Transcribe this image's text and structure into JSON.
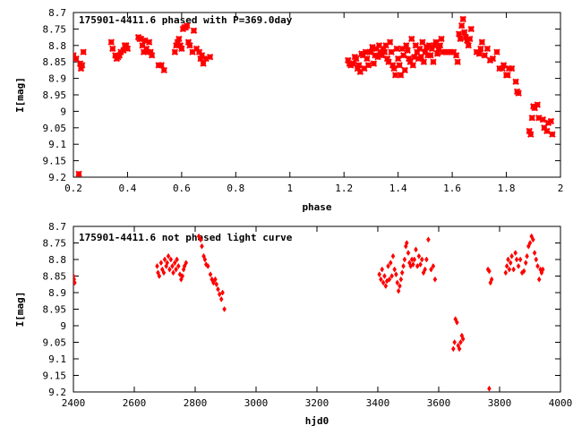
{
  "theme": {
    "marker_color": "#ff0000",
    "axis_color": "#000000",
    "background": "#ffffff"
  },
  "chart_data": [
    {
      "type": "scatter",
      "title": "175901-4411.6 phased with P=369.0day",
      "xlabel": "phase",
      "ylabel": "I[mag]",
      "xlim": [
        0.2,
        2.0
      ],
      "ylim": [
        8.7,
        9.2
      ],
      "y_inverted": true,
      "grid": false,
      "legend": "none",
      "marker": "cross",
      "x_ticks": [
        0.2,
        0.4,
        0.6,
        0.8,
        1,
        1.2,
        1.4,
        1.6,
        1.8,
        2
      ],
      "x_tick_labels": [
        "0.2",
        "0.4",
        "0.6",
        "0.8",
        "1",
        "1.2",
        "1.4",
        "1.6",
        "1.8",
        "2"
      ],
      "y_ticks": [
        8.7,
        8.75,
        8.8,
        8.85,
        8.9,
        8.95,
        9,
        9.05,
        9.1,
        9.15,
        9.2
      ],
      "y_tick_labels": [
        "8.7",
        "8.75",
        "8.8",
        "8.85",
        "8.9",
        "8.95",
        "9",
        "9.05",
        "9.1",
        "9.15",
        "9.2"
      ],
      "points": [
        [
          0.2,
          8.83
        ],
        [
          0.21,
          8.84
        ],
        [
          0.225,
          8.855
        ],
        [
          0.228,
          8.87
        ],
        [
          0.232,
          8.86
        ],
        [
          0.237,
          8.82
        ],
        [
          0.22,
          9.19
        ],
        [
          0.34,
          8.79
        ],
        [
          0.345,
          8.81
        ],
        [
          0.355,
          8.83
        ],
        [
          0.36,
          8.84
        ],
        [
          0.365,
          8.835
        ],
        [
          0.37,
          8.83
        ],
        [
          0.375,
          8.82
        ],
        [
          0.385,
          8.815
        ],
        [
          0.39,
          8.8
        ],
        [
          0.395,
          8.8
        ],
        [
          0.4,
          8.81
        ],
        [
          0.44,
          8.775
        ],
        [
          0.445,
          8.78
        ],
        [
          0.45,
          8.78
        ],
        [
          0.455,
          8.8
        ],
        [
          0.46,
          8.82
        ],
        [
          0.465,
          8.785
        ],
        [
          0.47,
          8.81
        ],
        [
          0.475,
          8.82
        ],
        [
          0.48,
          8.79
        ],
        [
          0.485,
          8.82
        ],
        [
          0.49,
          8.83
        ],
        [
          0.515,
          8.86
        ],
        [
          0.525,
          8.86
        ],
        [
          0.535,
          8.875
        ],
        [
          0.575,
          8.82
        ],
        [
          0.58,
          8.8
        ],
        [
          0.585,
          8.79
        ],
        [
          0.59,
          8.78
        ],
        [
          0.595,
          8.8
        ],
        [
          0.6,
          8.81
        ],
        [
          0.605,
          8.75
        ],
        [
          0.61,
          8.745
        ],
        [
          0.615,
          8.745
        ],
        [
          0.62,
          8.74
        ],
        [
          0.625,
          8.79
        ],
        [
          0.63,
          8.8
        ],
        [
          0.64,
          8.82
        ],
        [
          0.645,
          8.755
        ],
        [
          0.655,
          8.81
        ],
        [
          0.665,
          8.82
        ],
        [
          0.67,
          8.84
        ],
        [
          0.675,
          8.83
        ],
        [
          0.68,
          8.855
        ],
        [
          0.69,
          8.84
        ],
        [
          0.705,
          8.835
        ],
        [
          1.215,
          8.845
        ],
        [
          1.22,
          8.855
        ],
        [
          1.225,
          8.86
        ],
        [
          1.235,
          8.855
        ],
        [
          1.24,
          8.835
        ],
        [
          1.245,
          8.84
        ],
        [
          1.25,
          8.87
        ],
        [
          1.255,
          8.86
        ],
        [
          1.26,
          8.88
        ],
        [
          1.265,
          8.825
        ],
        [
          1.27,
          8.83
        ],
        [
          1.275,
          8.87
        ],
        [
          1.28,
          8.82
        ],
        [
          1.285,
          8.84
        ],
        [
          1.29,
          8.86
        ],
        [
          1.295,
          8.82
        ],
        [
          1.3,
          8.82
        ],
        [
          1.305,
          8.805
        ],
        [
          1.31,
          8.855
        ],
        [
          1.315,
          8.83
        ],
        [
          1.32,
          8.81
        ],
        [
          1.325,
          8.835
        ],
        [
          1.33,
          8.8
        ],
        [
          1.335,
          8.82
        ],
        [
          1.34,
          8.83
        ],
        [
          1.345,
          8.81
        ],
        [
          1.35,
          8.82
        ],
        [
          1.355,
          8.8
        ],
        [
          1.36,
          8.84
        ],
        [
          1.365,
          8.85
        ],
        [
          1.37,
          8.79
        ],
        [
          1.375,
          8.82
        ],
        [
          1.38,
          8.86
        ],
        [
          1.385,
          8.87
        ],
        [
          1.39,
          8.89
        ],
        [
          1.395,
          8.81
        ],
        [
          1.4,
          8.84
        ],
        [
          1.405,
          8.86
        ],
        [
          1.41,
          8.89
        ],
        [
          1.415,
          8.81
        ],
        [
          1.42,
          8.83
        ],
        [
          1.425,
          8.875
        ],
        [
          1.43,
          8.8
        ],
        [
          1.435,
          8.815
        ],
        [
          1.44,
          8.84
        ],
        [
          1.445,
          8.85
        ],
        [
          1.45,
          8.78
        ],
        [
          1.455,
          8.86
        ],
        [
          1.46,
          8.835
        ],
        [
          1.465,
          8.8
        ],
        [
          1.47,
          8.82
        ],
        [
          1.475,
          8.84
        ],
        [
          1.48,
          8.81
        ],
        [
          1.485,
          8.835
        ],
        [
          1.49,
          8.79
        ],
        [
          1.495,
          8.85
        ],
        [
          1.5,
          8.82
        ],
        [
          1.505,
          8.805
        ],
        [
          1.51,
          8.83
        ],
        [
          1.515,
          8.8
        ],
        [
          1.52,
          8.83
        ],
        [
          1.525,
          8.81
        ],
        [
          1.53,
          8.85
        ],
        [
          1.535,
          8.8
        ],
        [
          1.54,
          8.79
        ],
        [
          1.545,
          8.825
        ],
        [
          1.55,
          8.81
        ],
        [
          1.555,
          8.8
        ],
        [
          1.56,
          8.78
        ],
        [
          1.565,
          8.82
        ],
        [
          1.575,
          8.82
        ],
        [
          1.585,
          8.82
        ],
        [
          1.595,
          8.82
        ],
        [
          1.605,
          8.82
        ],
        [
          1.615,
          8.83
        ],
        [
          1.62,
          8.85
        ],
        [
          1.625,
          8.765
        ],
        [
          1.63,
          8.78
        ],
        [
          1.635,
          8.74
        ],
        [
          1.64,
          8.72
        ],
        [
          1.645,
          8.76
        ],
        [
          1.65,
          8.775
        ],
        [
          1.655,
          8.785
        ],
        [
          1.66,
          8.8
        ],
        [
          1.665,
          8.78
        ],
        [
          1.67,
          8.75
        ],
        [
          1.69,
          8.82
        ],
        [
          1.7,
          8.825
        ],
        [
          1.705,
          8.81
        ],
        [
          1.71,
          8.79
        ],
        [
          1.72,
          8.83
        ],
        [
          1.73,
          8.81
        ],
        [
          1.74,
          8.845
        ],
        [
          1.75,
          8.84
        ],
        [
          1.765,
          8.82
        ],
        [
          1.775,
          8.87
        ],
        [
          1.785,
          8.87
        ],
        [
          1.79,
          8.86
        ],
        [
          1.8,
          8.89
        ],
        [
          1.805,
          8.89
        ],
        [
          1.81,
          8.87
        ],
        [
          1.82,
          8.87
        ],
        [
          1.835,
          8.91
        ],
        [
          1.84,
          8.94
        ],
        [
          1.845,
          8.945
        ],
        [
          1.885,
          9.06
        ],
        [
          1.89,
          9.07
        ],
        [
          1.895,
          9.02
        ],
        [
          1.9,
          8.985
        ],
        [
          1.905,
          8.99
        ],
        [
          1.915,
          8.98
        ],
        [
          1.92,
          9.02
        ],
        [
          1.935,
          9.025
        ],
        [
          1.94,
          9.05
        ],
        [
          1.95,
          9.06
        ],
        [
          1.955,
          9.035
        ],
        [
          1.965,
          9.03
        ],
        [
          1.97,
          9.07
        ]
      ]
    },
    {
      "type": "scatter",
      "title": "175901-4411.6 not phased light curve",
      "xlabel": "hjd0",
      "ylabel": "I[mag]",
      "xlim": [
        2400,
        4000
      ],
      "ylim": [
        8.7,
        9.2
      ],
      "y_inverted": true,
      "grid": false,
      "legend": "none",
      "marker": "diamond",
      "x_ticks": [
        2400,
        2600,
        2800,
        3000,
        3200,
        3400,
        3600,
        3800,
        4000
      ],
      "x_tick_labels": [
        "2400",
        "2600",
        "2800",
        "3000",
        "3200",
        "3400",
        "3600",
        "3800",
        "4000"
      ],
      "y_ticks": [
        8.7,
        8.75,
        8.8,
        8.85,
        8.9,
        8.95,
        9,
        9.05,
        9.1,
        9.15,
        9.2
      ],
      "y_tick_labels": [
        "8.7",
        "8.75",
        "8.8",
        "8.85",
        "8.9",
        "8.95",
        "9",
        "9.05",
        "9.1",
        "9.15",
        "9.2"
      ],
      "points": [
        [
          2400,
          8.85
        ],
        [
          2402,
          8.86
        ],
        [
          2404,
          8.87
        ],
        [
          2675,
          8.82
        ],
        [
          2678,
          8.84
        ],
        [
          2682,
          8.85
        ],
        [
          2688,
          8.81
        ],
        [
          2692,
          8.83
        ],
        [
          2697,
          8.84
        ],
        [
          2700,
          8.8
        ],
        [
          2705,
          8.82
        ],
        [
          2708,
          8.81
        ],
        [
          2712,
          8.79
        ],
        [
          2716,
          8.83
        ],
        [
          2720,
          8.8
        ],
        [
          2725,
          8.82
        ],
        [
          2728,
          8.84
        ],
        [
          2733,
          8.81
        ],
        [
          2737,
          8.83
        ],
        [
          2740,
          8.8
        ],
        [
          2745,
          8.82
        ],
        [
          2750,
          8.845
        ],
        [
          2754,
          8.86
        ],
        [
          2758,
          8.85
        ],
        [
          2762,
          8.83
        ],
        [
          2765,
          8.82
        ],
        [
          2770,
          8.81
        ],
        [
          2812,
          8.73
        ],
        [
          2818,
          8.74
        ],
        [
          2822,
          8.76
        ],
        [
          2828,
          8.79
        ],
        [
          2832,
          8.8
        ],
        [
          2836,
          8.815
        ],
        [
          2842,
          8.82
        ],
        [
          2850,
          8.845
        ],
        [
          2855,
          8.86
        ],
        [
          2860,
          8.87
        ],
        [
          2866,
          8.86
        ],
        [
          2870,
          8.875
        ],
        [
          2875,
          8.89
        ],
        [
          2880,
          8.905
        ],
        [
          2886,
          8.92
        ],
        [
          2890,
          8.9
        ],
        [
          2896,
          8.95
        ],
        [
          3405,
          8.845
        ],
        [
          3410,
          8.86
        ],
        [
          3414,
          8.83
        ],
        [
          3418,
          8.87
        ],
        [
          3422,
          8.85
        ],
        [
          3426,
          8.88
        ],
        [
          3430,
          8.865
        ],
        [
          3434,
          8.82
        ],
        [
          3438,
          8.86
        ],
        [
          3442,
          8.81
        ],
        [
          3446,
          8.85
        ],
        [
          3450,
          8.79
        ],
        [
          3455,
          8.83
        ],
        [
          3460,
          8.845
        ],
        [
          3464,
          8.87
        ],
        [
          3468,
          8.895
        ],
        [
          3472,
          8.88
        ],
        [
          3476,
          8.86
        ],
        [
          3480,
          8.84
        ],
        [
          3484,
          8.82
        ],
        [
          3488,
          8.8
        ],
        [
          3492,
          8.76
        ],
        [
          3495,
          8.75
        ],
        [
          3500,
          8.78
        ],
        [
          3504,
          8.81
        ],
        [
          3508,
          8.82
        ],
        [
          3512,
          8.8
        ],
        [
          3516,
          8.815
        ],
        [
          3520,
          8.8
        ],
        [
          3525,
          8.77
        ],
        [
          3530,
          8.82
        ],
        [
          3535,
          8.79
        ],
        [
          3540,
          8.815
        ],
        [
          3545,
          8.8
        ],
        [
          3550,
          8.84
        ],
        [
          3555,
          8.83
        ],
        [
          3560,
          8.8
        ],
        [
          3566,
          8.74
        ],
        [
          3575,
          8.83
        ],
        [
          3582,
          8.82
        ],
        [
          3588,
          8.86
        ],
        [
          3648,
          9.07
        ],
        [
          3652,
          9.05
        ],
        [
          3655,
          8.98
        ],
        [
          3660,
          8.99
        ],
        [
          3664,
          9.06
        ],
        [
          3668,
          9.07
        ],
        [
          3672,
          9.05
        ],
        [
          3676,
          9.03
        ],
        [
          3680,
          9.04
        ],
        [
          3762,
          8.83
        ],
        [
          3766,
          8.835
        ],
        [
          3770,
          8.87
        ],
        [
          3774,
          8.86
        ],
        [
          3766,
          9.19
        ],
        [
          3820,
          8.84
        ],
        [
          3824,
          8.82
        ],
        [
          3828,
          8.8
        ],
        [
          3832,
          8.83
        ],
        [
          3836,
          8.81
        ],
        [
          3840,
          8.79
        ],
        [
          3846,
          8.83
        ],
        [
          3852,
          8.78
        ],
        [
          3856,
          8.8
        ],
        [
          3862,
          8.82
        ],
        [
          3868,
          8.8
        ],
        [
          3874,
          8.84
        ],
        [
          3880,
          8.835
        ],
        [
          3886,
          8.81
        ],
        [
          3890,
          8.79
        ],
        [
          3895,
          8.76
        ],
        [
          3900,
          8.75
        ],
        [
          3905,
          8.73
        ],
        [
          3910,
          8.74
        ],
        [
          3915,
          8.78
        ],
        [
          3920,
          8.8
        ],
        [
          3925,
          8.82
        ],
        [
          3930,
          8.86
        ],
        [
          3934,
          8.83
        ],
        [
          3938,
          8.84
        ],
        [
          3942,
          8.83
        ]
      ]
    }
  ]
}
